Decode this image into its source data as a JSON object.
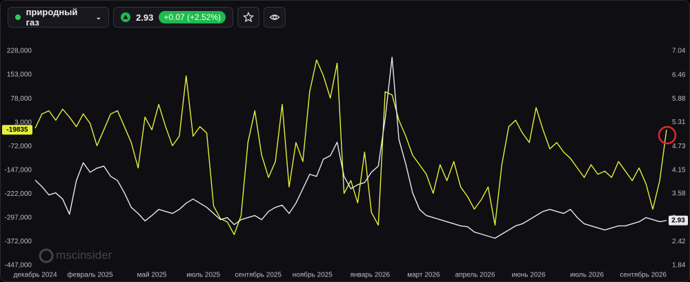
{
  "header": {
    "instrument": "природный газ",
    "price": 2.93,
    "change": "+0.07 (+2.52%)"
  },
  "chart_data": {
    "type": "line",
    "watermark": "mscinsider",
    "grid": false,
    "x": [
      0,
      1,
      2,
      3,
      4,
      5,
      6,
      7,
      8,
      9,
      10,
      11,
      12,
      13,
      14,
      15,
      16,
      17,
      18,
      19,
      20,
      21,
      22,
      23,
      24,
      25,
      26,
      27,
      28,
      29,
      30,
      31,
      32,
      33,
      34,
      35,
      36,
      37,
      38,
      39,
      40,
      41,
      42,
      43,
      44,
      45,
      46,
      47,
      48,
      49,
      50,
      51,
      52,
      53,
      54,
      55,
      56,
      57,
      58,
      59,
      60,
      61,
      62,
      63,
      64,
      65,
      66,
      67,
      68,
      69,
      70,
      71,
      72,
      73,
      74,
      75,
      76,
      77,
      78,
      79,
      80,
      81,
      82,
      83,
      84,
      85,
      86,
      87,
      88,
      89,
      90,
      91,
      92
    ],
    "xlim": [
      0,
      92
    ],
    "xticks": [
      {
        "value": 0,
        "label": "декабрь 2024"
      },
      {
        "value": 8,
        "label": "февраль 2025"
      },
      {
        "value": 17,
        "label": "май 2025"
      },
      {
        "value": 24.5,
        "label": "июль 2025"
      },
      {
        "value": 32.5,
        "label": "сентябрь 2025"
      },
      {
        "value": 40.4,
        "label": "ноябрь 2025"
      },
      {
        "value": 48.8,
        "label": "январь 2026"
      },
      {
        "value": 56.6,
        "label": "март 2026"
      },
      {
        "value": 64.1,
        "label": "апрель 2026"
      },
      {
        "value": 71.9,
        "label": "июнь 2026"
      },
      {
        "value": 80.4,
        "label": "июль 2026"
      },
      {
        "value": 88.6,
        "label": "сентябрь 2026"
      }
    ],
    "ylim": [
      -447000,
      228000
    ],
    "yticks": [
      {
        "value": 228000,
        "label": "228,000"
      },
      {
        "value": 153000,
        "label": "153,000"
      },
      {
        "value": 78000,
        "label": "78,000"
      },
      {
        "value": 3000,
        "label": "3,000"
      },
      {
        "value": -72000,
        "label": "-72,000"
      },
      {
        "value": -147000,
        "label": "-147,000"
      },
      {
        "value": -222000,
        "label": "-222,000"
      },
      {
        "value": -297000,
        "label": "-297,000"
      },
      {
        "value": -372000,
        "label": "-372,000"
      },
      {
        "value": -447000,
        "label": "-447,000"
      }
    ],
    "y2lim": [
      1.84,
      7.04
    ],
    "y2ticks": [
      7.04,
      6.46,
      5.88,
      5.31,
      4.73,
      4.15,
      3.58,
      3,
      2.42,
      1.84
    ],
    "series": [
      {
        "color": "#e6ef3a",
        "values": [
          -15000,
          30000,
          40000,
          10000,
          45000,
          20000,
          -10000,
          30000,
          0,
          -70000,
          -20000,
          30000,
          40000,
          -10000,
          -60000,
          -140000,
          20000,
          -20000,
          60000,
          -10000,
          -70000,
          -40000,
          150000,
          -40000,
          -10000,
          -30000,
          -260000,
          -300000,
          -310000,
          -350000,
          -290000,
          -60000,
          40000,
          -100000,
          -170000,
          -120000,
          60000,
          -200000,
          -60000,
          -120000,
          100000,
          200000,
          150000,
          80000,
          190000,
          -220000,
          -180000,
          -250000,
          -90000,
          -280000,
          -320000,
          100000,
          90000,
          10000,
          -40000,
          -100000,
          -130000,
          -160000,
          -220000,
          -130000,
          -180000,
          -120000,
          -200000,
          -230000,
          -270000,
          -240000,
          -200000,
          -320000,
          -130000,
          -10000,
          10000,
          -30000,
          -60000,
          50000,
          -20000,
          -80000,
          -60000,
          -90000,
          -110000,
          -140000,
          -170000,
          -130000,
          -160000,
          -150000,
          -170000,
          -120000,
          -150000,
          -180000,
          -140000,
          -190000,
          -270000,
          -180000,
          -19835
        ]
      },
      {
        "color": "#e8e8ee",
        "axis": "y2",
        "values": [
          3.91,
          3.75,
          3.55,
          3.6,
          3.45,
          3.08,
          3.9,
          4.33,
          4.1,
          4.2,
          4.25,
          4.0,
          3.9,
          3.6,
          3.25,
          3.1,
          2.92,
          3.05,
          3.2,
          3.15,
          3.1,
          3.2,
          3.35,
          3.45,
          3.35,
          3.25,
          3.1,
          2.95,
          3.0,
          2.83,
          2.95,
          3.0,
          3.05,
          2.95,
          3.15,
          3.25,
          3.3,
          3.1,
          3.35,
          3.7,
          4.05,
          4.0,
          4.42,
          4.5,
          4.83,
          4.0,
          3.7,
          3.8,
          3.85,
          4.1,
          4.25,
          5.4,
          6.89,
          4.9,
          4.3,
          3.6,
          3.2,
          3.05,
          3.0,
          2.95,
          2.9,
          2.85,
          2.8,
          2.78,
          2.65,
          2.6,
          2.55,
          2.5,
          2.6,
          2.7,
          2.8,
          2.85,
          2.95,
          3.05,
          3.15,
          3.2,
          3.15,
          3.1,
          3.2,
          3.0,
          2.85,
          2.8,
          2.75,
          2.7,
          2.75,
          2.8,
          2.8,
          2.85,
          2.9,
          3.0,
          2.95,
          2.9,
          2.93
        ]
      }
    ]
  }
}
